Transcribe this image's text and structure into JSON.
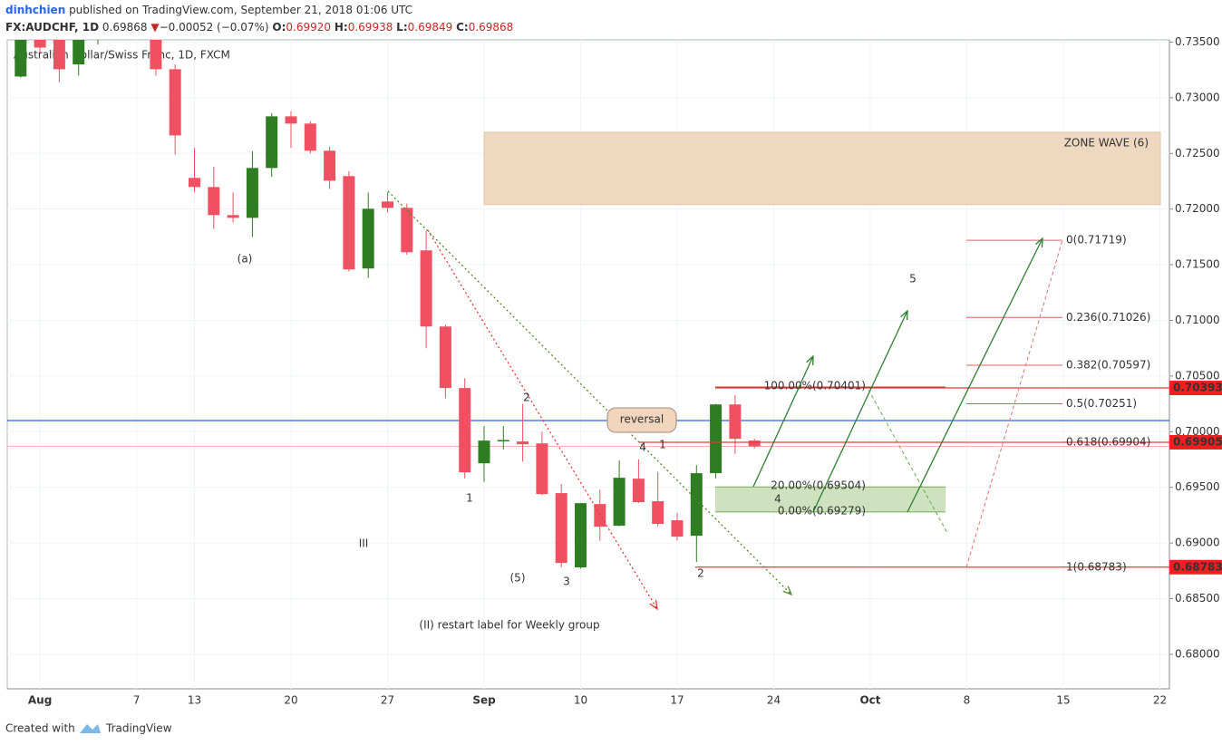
{
  "header": {
    "author": "dinhchien",
    "published": " published on TradingView.com, September 21, 2018 01:06 UTC",
    "symbol": "FX:AUDCHF, 1D",
    "last": "0.69868",
    "arrow": "▼",
    "change": "−0.00052 (−0.07%)",
    "o_label": "O:",
    "o": "0.69920",
    "h_label": "H:",
    "h": "0.69938",
    "l_label": "L:",
    "l": "0.69849",
    "c_label": "C:",
    "c": "0.69868"
  },
  "footer": {
    "created": "Created with",
    "brand": "TradingView"
  },
  "chart_data": {
    "type": "candlestick",
    "legend_text": "Australian Dollar/Swiss Franc, 1D, FXCM",
    "categories": [
      null,
      "Aug",
      null,
      null,
      null,
      null,
      "7",
      null,
      null,
      "13",
      null,
      null,
      null,
      null,
      "20",
      null,
      null,
      null,
      null,
      "27",
      null,
      null,
      null,
      null,
      "Sep",
      null,
      null,
      null,
      null,
      "10",
      null,
      null,
      null,
      null,
      "17",
      null,
      null,
      null,
      null,
      "24",
      null,
      null,
      null,
      null,
      "Oct",
      null,
      null,
      null,
      null,
      "8",
      null,
      null,
      null,
      null,
      "15",
      null,
      null,
      null,
      null,
      "22"
    ],
    "open": [
      0.73191,
      0.737,
      0.7362,
      0.733,
      0.7352,
      null,
      null,
      0.7372,
      0.73256,
      0.7228,
      0.72198,
      0.71946,
      0.71921,
      0.72369,
      0.72833,
      0.72768,
      0.72524,
      0.72296,
      0.71466,
      0.72068,
      0.72011,
      0.71629,
      0.70945,
      0.70392,
      0.69716,
      0.6992,
      0.69912,
      0.69895,
      0.69448,
      0.68781,
      0.6935,
      0.69155,
      0.69578,
      0.69375,
      0.69204,
      0.69065,
      0.69627,
      0.70245,
      0.6992,
      null,
      null,
      null,
      null,
      null,
      null,
      null,
      null,
      null,
      null,
      null,
      null,
      null,
      null,
      null,
      null,
      null,
      null,
      null,
      null,
      null
    ],
    "high": [
      0.738,
      0.7385,
      0.737,
      0.738,
      0.7375,
      null,
      null,
      0.738,
      0.733,
      0.7255,
      0.7238,
      0.7215,
      0.7252,
      0.7286,
      0.7288,
      0.7279,
      0.7256,
      0.7234,
      0.7215,
      0.7215,
      0.7205,
      0.718,
      0.7096,
      0.7048,
      0.7005,
      0.7005,
      0.7025,
      0.7,
      0.6953,
      0.6936,
      0.6948,
      0.6974,
      0.6975,
      0.6964,
      0.6927,
      0.697,
      0.7025,
      0.7033,
      0.69938,
      null,
      null,
      null,
      null,
      null,
      null,
      null,
      null,
      null,
      null,
      null,
      null,
      null,
      null,
      null,
      null,
      null,
      null,
      null,
      null,
      null
    ],
    "low": [
      0.7318,
      0.734,
      0.7314,
      0.732,
      0.7348,
      null,
      null,
      0.732,
      0.7249,
      0.7215,
      0.7182,
      0.7188,
      0.7175,
      0.7229,
      0.7255,
      0.725,
      0.7218,
      0.7144,
      0.7138,
      0.7197,
      0.7159,
      0.7075,
      0.703,
      0.6958,
      0.6955,
      0.6984,
      0.6973,
      0.6943,
      0.6878,
      0.6877,
      0.6902,
      0.6915,
      0.6936,
      0.6915,
      0.6902,
      0.6883,
      0.6958,
      0.698,
      0.69849,
      null,
      null,
      null,
      null,
      null,
      null,
      null,
      null,
      null,
      null,
      null,
      null,
      null,
      null,
      null,
      null,
      null,
      null,
      null,
      null,
      null
    ],
    "close": [
      0.7365,
      0.73451,
      0.73256,
      0.737,
      0.736,
      null,
      null,
      0.73256,
      0.72662,
      0.72198,
      0.71946,
      0.71921,
      0.72369,
      0.72833,
      0.72768,
      0.72524,
      0.72255,
      0.71458,
      0.72003,
      0.72011,
      0.71612,
      0.70945,
      0.70392,
      0.69635,
      0.6992,
      0.69925,
      0.69887,
      0.6944,
      0.68821,
      0.69358,
      0.69147,
      0.69586,
      0.69367,
      0.69171,
      0.69057,
      0.69627,
      0.70245,
      0.69936,
      0.69868,
      null,
      null,
      null,
      null,
      null,
      null,
      null,
      null,
      null,
      null,
      null,
      null,
      null,
      null,
      null,
      null,
      null,
      null,
      null,
      null,
      null
    ],
    "up_color": "#2f7d22",
    "down_color": "#ef5162",
    "ylim": [
      0.6769,
      0.7352
    ],
    "yticks": [
      {
        "value": 0.68,
        "label": "0.68000"
      },
      {
        "value": 0.685,
        "label": "0.68500"
      },
      {
        "value": 0.69,
        "label": "0.69000"
      },
      {
        "value": 0.695,
        "label": "0.69500"
      },
      {
        "value": 0.7,
        "label": "0.70000"
      },
      {
        "value": 0.705,
        "label": "0.70500"
      },
      {
        "value": 0.71,
        "label": "0.71000"
      },
      {
        "value": 0.715,
        "label": "0.71500"
      },
      {
        "value": 0.72,
        "label": "0.72000"
      },
      {
        "value": 0.725,
        "label": "0.72500"
      },
      {
        "value": 0.73,
        "label": "0.73000"
      },
      {
        "value": 0.735,
        "label": "0.73500"
      }
    ],
    "grid": true,
    "horizontal_line": {
      "value": 0.701,
      "color": "#2962ff"
    },
    "price_tags": [
      0.70393,
      0.69905,
      0.68783
    ],
    "fib_levels": [
      {
        "value": 0.71719,
        "label": "0(0.71719)"
      },
      {
        "value": 0.71026,
        "label": "0.236(0.71026)"
      },
      {
        "value": 0.70597,
        "label": "0.382(0.70597)"
      },
      {
        "value": 0.70251,
        "label": "0.5(0.70251)"
      },
      {
        "value": 0.69904,
        "label": "0.618(0.69904)"
      },
      {
        "value": 0.68783,
        "label": "1(0.68783)"
      }
    ],
    "fib_extension": [
      {
        "value": 0.70401,
        "label": "100.00%(0.70401)"
      },
      {
        "value": 0.69504,
        "label": "20.00%(0.69504)"
      },
      {
        "value": 0.69279,
        "label": "0.00%(0.69279)"
      }
    ],
    "zone": {
      "label": "ZONE WAVE (6)",
      "top": 0.7269,
      "bottom": 0.7204
    },
    "annotations": [
      "(a)",
      "III",
      "(5)",
      "(II) restart label for Weekly group",
      "reversal",
      "1",
      "2",
      "3",
      "4",
      "1",
      "2",
      "4",
      "5"
    ]
  }
}
